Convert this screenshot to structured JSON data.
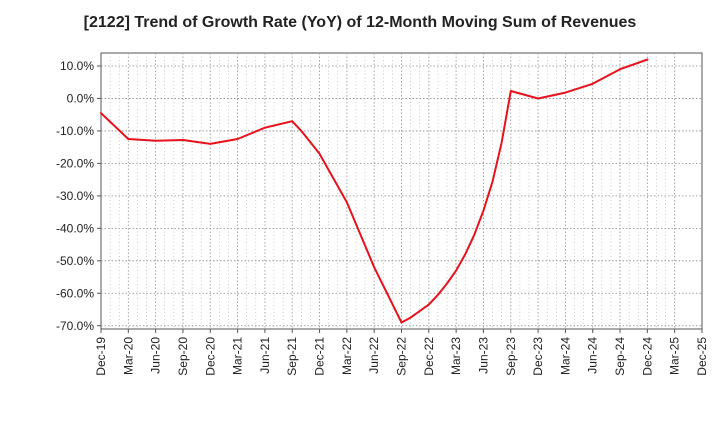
{
  "chart_data": {
    "type": "line",
    "title": "[2122]  Trend of Growth Rate (YoY) of 12-Month Moving Sum of Revenues",
    "xlabel": "",
    "ylabel": "",
    "ylim": [
      -71,
      14
    ],
    "y_ticks": [
      10,
      0,
      -10,
      -20,
      -30,
      -40,
      -50,
      -60,
      -70
    ],
    "y_tick_labels": [
      "10.0%",
      "0.0%",
      "-10.0%",
      "-20.0%",
      "-30.0%",
      "-40.0%",
      "-50.0%",
      "-60.0%",
      "-70.0%"
    ],
    "x_tick_labels": [
      "Dec-19",
      "Mar-20",
      "Jun-20",
      "Sep-20",
      "Dec-20",
      "Mar-21",
      "Jun-21",
      "Sep-21",
      "Dec-21",
      "Mar-22",
      "Jun-22",
      "Sep-22",
      "Dec-22",
      "Mar-23",
      "Jun-23",
      "Sep-23",
      "Dec-23",
      "Mar-24",
      "Jun-24",
      "Sep-24",
      "Dec-24",
      "Mar-25",
      "Dec-25"
    ],
    "grid": true,
    "line_color": "#e8111c",
    "series": [
      {
        "x": [
          "Dec-19",
          "Mar-20",
          "Jun-20",
          "Sep-20",
          "Dec-20",
          "Mar-21",
          "Jun-21",
          "Sep-21",
          "Oct-21",
          "Nov-21",
          "Dec-21",
          "Mar-22",
          "Jun-22",
          "Sep-22",
          "Oct-22",
          "Nov-22",
          "Dec-22",
          "Jan-23",
          "Feb-23",
          "Mar-23",
          "Apr-23",
          "May-23",
          "Jun-23",
          "Jul-23",
          "Aug-23",
          "Sep-23",
          "Dec-23",
          "Mar-24",
          "Jun-24",
          "Sep-24",
          "Dec-24"
        ],
        "values": [
          -4.5,
          -12.5,
          -13.0,
          -12.8,
          -14.0,
          -12.5,
          -9.0,
          -7.0,
          -10.0,
          -13.5,
          -17.0,
          -32.0,
          -52.0,
          -69.0,
          -67.5,
          -65.5,
          -63.5,
          -60.5,
          -57.0,
          -53.0,
          -48.0,
          -42.0,
          -34.5,
          -25.5,
          -13.5,
          2.3,
          0.0,
          1.8,
          4.5,
          9.0,
          12.0
        ]
      }
    ]
  }
}
